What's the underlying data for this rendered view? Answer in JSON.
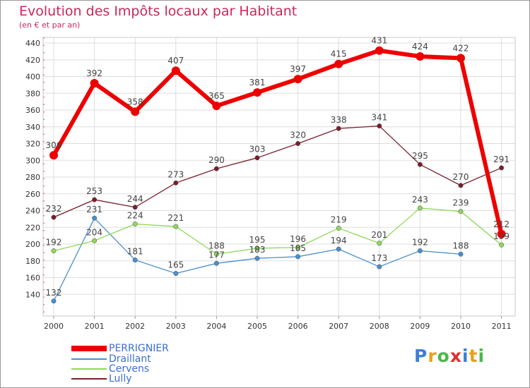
{
  "header": {
    "title": "Evolution des Impôts locaux par Habitant",
    "subtitle": "(en € et par an)"
  },
  "colors": {
    "title": "#c8285a",
    "legend_text": "#3a6fd0",
    "grid": "#dddddd"
  },
  "logo": {
    "text": "Proxiti"
  },
  "chart_data": {
    "type": "line",
    "title": "Evolution des Impôts locaux par Habitant",
    "subtitle": "(en € et par an)",
    "xlabel": "",
    "ylabel": "",
    "categories": [
      "2000",
      "2001",
      "2002",
      "2003",
      "2004",
      "2005",
      "2006",
      "2007",
      "2008",
      "2009",
      "2010",
      "2011"
    ],
    "ylim": [
      120,
      440
    ],
    "yticks": [
      140,
      160,
      180,
      200,
      220,
      240,
      260,
      280,
      300,
      320,
      340,
      360,
      380,
      400,
      420,
      440
    ],
    "grid": true,
    "legend_position": "bottom-left",
    "series": [
      {
        "name": "PERRIGNIER",
        "color": "#ee0000",
        "values": [
          306,
          392,
          358,
          407,
          365,
          381,
          397,
          415,
          431,
          424,
          422,
          212
        ],
        "labels": [
          "306",
          "392",
          "358",
          "407",
          "365",
          "381",
          "397",
          "415",
          "431",
          "424",
          "422",
          "212"
        ]
      },
      {
        "name": "Draillant",
        "color": "#4a8fcf",
        "values": [
          132,
          231,
          181,
          165,
          177,
          183,
          185,
          194,
          173,
          192,
          188,
          null
        ],
        "labels": [
          "132",
          "231",
          "181",
          "165",
          "177",
          "183",
          "185",
          "194",
          "173",
          "192",
          "188",
          ""
        ]
      },
      {
        "name": "Cervens",
        "color": "#8fd85a",
        "values": [
          192,
          204,
          224,
          221,
          188,
          195,
          196,
          219,
          201,
          243,
          239,
          199
        ],
        "labels": [
          "192",
          "204",
          "224",
          "221",
          "188",
          "195",
          "196",
          "219",
          "201",
          "243",
          "239",
          "199"
        ]
      },
      {
        "name": "Lully",
        "color": "#7a1f2a",
        "values": [
          232,
          253,
          244,
          273,
          290,
          303,
          320,
          338,
          341,
          295,
          270,
          291
        ],
        "labels": [
          "232",
          "253",
          "244",
          "273",
          "290",
          "303",
          "320",
          "338",
          "341",
          "295",
          "270",
          "291"
        ]
      }
    ]
  }
}
